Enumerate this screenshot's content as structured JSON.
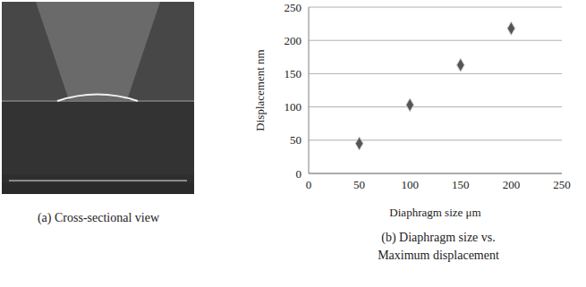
{
  "image_panel": {
    "caption": "(a) Cross-sectional view"
  },
  "chart_data": {
    "type": "scatter",
    "title": "(b) Diaphragm size vs. Maximum displacement",
    "x_label": "Diaphragm size μm",
    "y_label": "Displacement nm",
    "x": [
      50,
      100,
      150,
      200
    ],
    "values": [
      45,
      103,
      163,
      218
    ],
    "color": "#555555",
    "marker": "diamond",
    "xlim": [
      0,
      250
    ],
    "xticks": [
      0,
      50,
      100,
      150,
      200,
      250
    ],
    "ylim": [
      0,
      250
    ],
    "yticks": [
      0,
      50,
      100,
      150,
      200,
      250
    ],
    "grid": true
  }
}
